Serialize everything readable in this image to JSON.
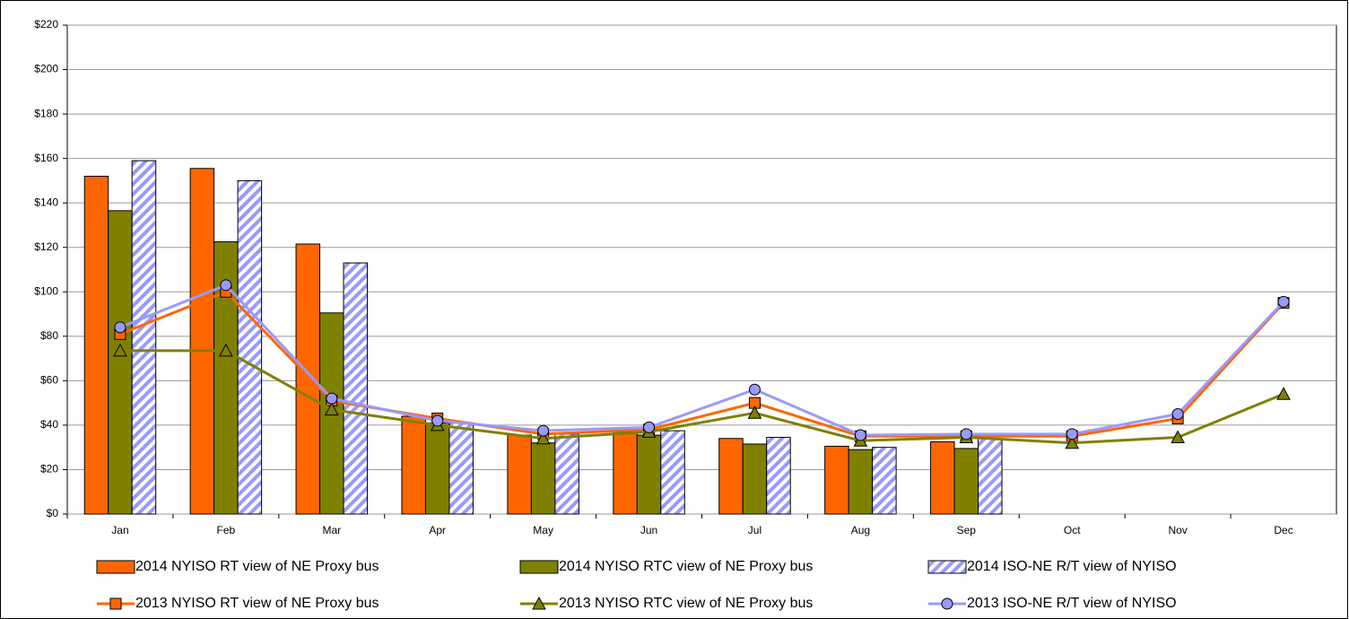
{
  "chart_data": {
    "type": "combo",
    "categories": [
      "Jan",
      "Feb",
      "Mar",
      "Apr",
      "May",
      "Jun",
      "Jul",
      "Aug",
      "Sep",
      "Oct",
      "Nov",
      "Dec"
    ],
    "ylim": [
      0,
      220
    ],
    "yticks": [
      {
        "value": 0,
        "label": "$0"
      },
      {
        "value": 20,
        "label": "$20"
      },
      {
        "value": 40,
        "label": "$40"
      },
      {
        "value": 60,
        "label": "$60"
      },
      {
        "value": 80,
        "label": "$80"
      },
      {
        "value": 100,
        "label": "$100"
      },
      {
        "value": 120,
        "label": "$120"
      },
      {
        "value": 140,
        "label": "$140"
      },
      {
        "value": 160,
        "label": "$160"
      },
      {
        "value": 180,
        "label": "$180"
      },
      {
        "value": 200,
        "label": "$200"
      },
      {
        "value": 220,
        "label": "$220"
      }
    ],
    "grid": true,
    "legend": "bottom",
    "series": [
      {
        "name": "2014 NYISO RT view of NE Proxy bus",
        "type": "bar",
        "color": "#ff6600",
        "values": [
          152,
          155.5,
          121.5,
          44,
          35.5,
          37,
          34,
          30.5,
          32.5,
          null,
          null,
          null
        ]
      },
      {
        "name": "2014 NYISO RTC view of NE Proxy bus",
        "type": "bar",
        "color": "#808000",
        "values": [
          136.5,
          122.5,
          90.5,
          41,
          32,
          35.5,
          31.5,
          29,
          29.5,
          null,
          null,
          null
        ]
      },
      {
        "name": "2014 ISO-NE R/T view of NYISO",
        "type": "bar",
        "color": "#9999ff",
        "pattern": "hatch",
        "values": [
          159,
          150,
          113,
          41,
          36,
          37.5,
          34.5,
          30,
          34,
          null,
          null,
          null
        ]
      },
      {
        "name": "2013 NYISO RT view of NE Proxy bus",
        "type": "line",
        "marker": "square",
        "color": "#ff6600",
        "values": [
          81,
          100,
          51,
          43,
          36,
          38,
          50,
          35,
          35,
          35,
          43,
          95
        ]
      },
      {
        "name": "2013 NYISO RTC view of NE Proxy bus",
        "type": "line",
        "marker": "triangle",
        "color": "#808000",
        "values": [
          73.5,
          73.5,
          47,
          40,
          34,
          37,
          45.5,
          33,
          34.5,
          32,
          34.5,
          54
        ]
      },
      {
        "name": "2013 ISO-NE R/T view of NYISO",
        "type": "line",
        "marker": "circle",
        "color": "#9999ff",
        "values": [
          84,
          103,
          52,
          42,
          37.5,
          39,
          56,
          35.5,
          36,
          36,
          45,
          95.5
        ]
      }
    ]
  }
}
